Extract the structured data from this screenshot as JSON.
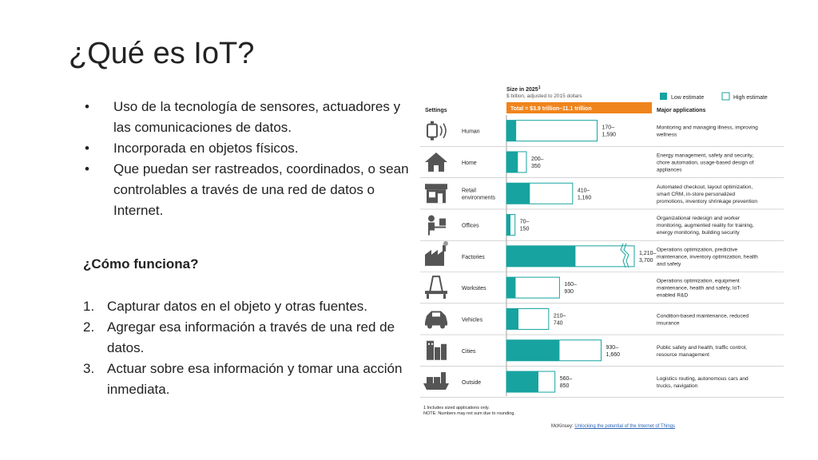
{
  "slide": {
    "title": "¿Qué es IoT?",
    "bullets": [
      "Uso de la tecnología de sensores, actuadores y las comunicaciones de datos.",
      "Incorporada en objetos físicos.",
      "Que puedan ser rastreados, coordinados, o sean controlables a través de una red de datos o Internet."
    ],
    "subheading": "¿Cómo funciona?",
    "steps": [
      "Capturar datos en el objeto y otras fuentes.",
      "Agregar esa información a través de una red de datos.",
      "Actuar sobre esa información y tomar una acción inmediata."
    ],
    "source_prefix": "McKinsey:",
    "source_link": "Unlocking the potential of the Internet of Things"
  },
  "chart_data": {
    "type": "bar",
    "size_title": "Size in 2025",
    "size_title_sup": "1",
    "size_subtitle": "$ billion, adjusted to 2015 dollars",
    "total_label": "Total = $3.9 trillion–11.1 trillion",
    "col_settings": "Settings",
    "col_applications": "Major applications",
    "legend": {
      "low": "Low estimate",
      "high": "High estimate"
    },
    "colors": {
      "low": "#17a3a0",
      "accent": "#f0841c",
      "bar_border": "#17a3a0",
      "icon": "#555555"
    },
    "footnote_1": "1  Includes sized applications only.",
    "footnote_2": "NOTE: Numbers may not sum due to rounding.",
    "rows": [
      {
        "setting": "Human",
        "icon": "human-wearable-icon",
        "low": 170,
        "high": 1590,
        "low_label": "170–",
        "high_label": "1,590",
        "apps": [
          "Monitoring and managing illness, improving",
          "wellness"
        ]
      },
      {
        "setting": "Home",
        "icon": "home-icon",
        "low": 200,
        "high": 350,
        "low_label": "200–",
        "high_label": "350",
        "apps": [
          "Energy management, safety and security,",
          "chore automation, usage-based design of",
          "appliances"
        ]
      },
      {
        "setting": "Retail environments",
        "icon": "shop-icon",
        "low": 410,
        "high": 1160,
        "low_label": "410–",
        "high_label": "1,160",
        "apps": [
          "Automated checkout, layout optimization,",
          "smart CRM, in-store personalized",
          "promotions, inventory shrinkage prevention"
        ]
      },
      {
        "setting": "Offices",
        "icon": "office-worker-icon",
        "low": 70,
        "high": 150,
        "low_label": "70–",
        "high_label": "150",
        "apps": [
          "Organizational redesign and worker",
          "monitoring, augmented reality for training,",
          "energy monitoring, building security"
        ]
      },
      {
        "setting": "Factories",
        "icon": "factory-icon",
        "low": 1210,
        "high": 3700,
        "low_label": "1,210–",
        "high_label": "3,700",
        "truncated": true,
        "apps": [
          "Operations optimization, predictive",
          "maintenance, inventory optimization, health",
          "and safety"
        ]
      },
      {
        "setting": "Worksites",
        "icon": "oil-rig-icon",
        "low": 160,
        "high": 930,
        "low_label": "160–",
        "high_label": "930",
        "apps": [
          "Operations optimization, equipment",
          "maintenance, health and safety, IoT-",
          "enabled R&D"
        ]
      },
      {
        "setting": "Vehicles",
        "icon": "car-icon",
        "low": 210,
        "high": 740,
        "low_label": "210–",
        "high_label": "740",
        "apps": [
          "Condition-based maintenance, reduced",
          "insurance"
        ]
      },
      {
        "setting": "Cities",
        "icon": "city-icon",
        "low": 930,
        "high": 1660,
        "low_label": "930–",
        "high_label": "1,660",
        "apps": [
          "Public safety and health, traffic control,",
          "resource management"
        ]
      },
      {
        "setting": "Outside",
        "icon": "cargo-ship-icon",
        "low": 560,
        "high": 850,
        "low_label": "560–",
        "high_label": "850",
        "apps": [
          "Logistics routing, autonomous cars and",
          "trucks, navigation"
        ]
      }
    ]
  }
}
